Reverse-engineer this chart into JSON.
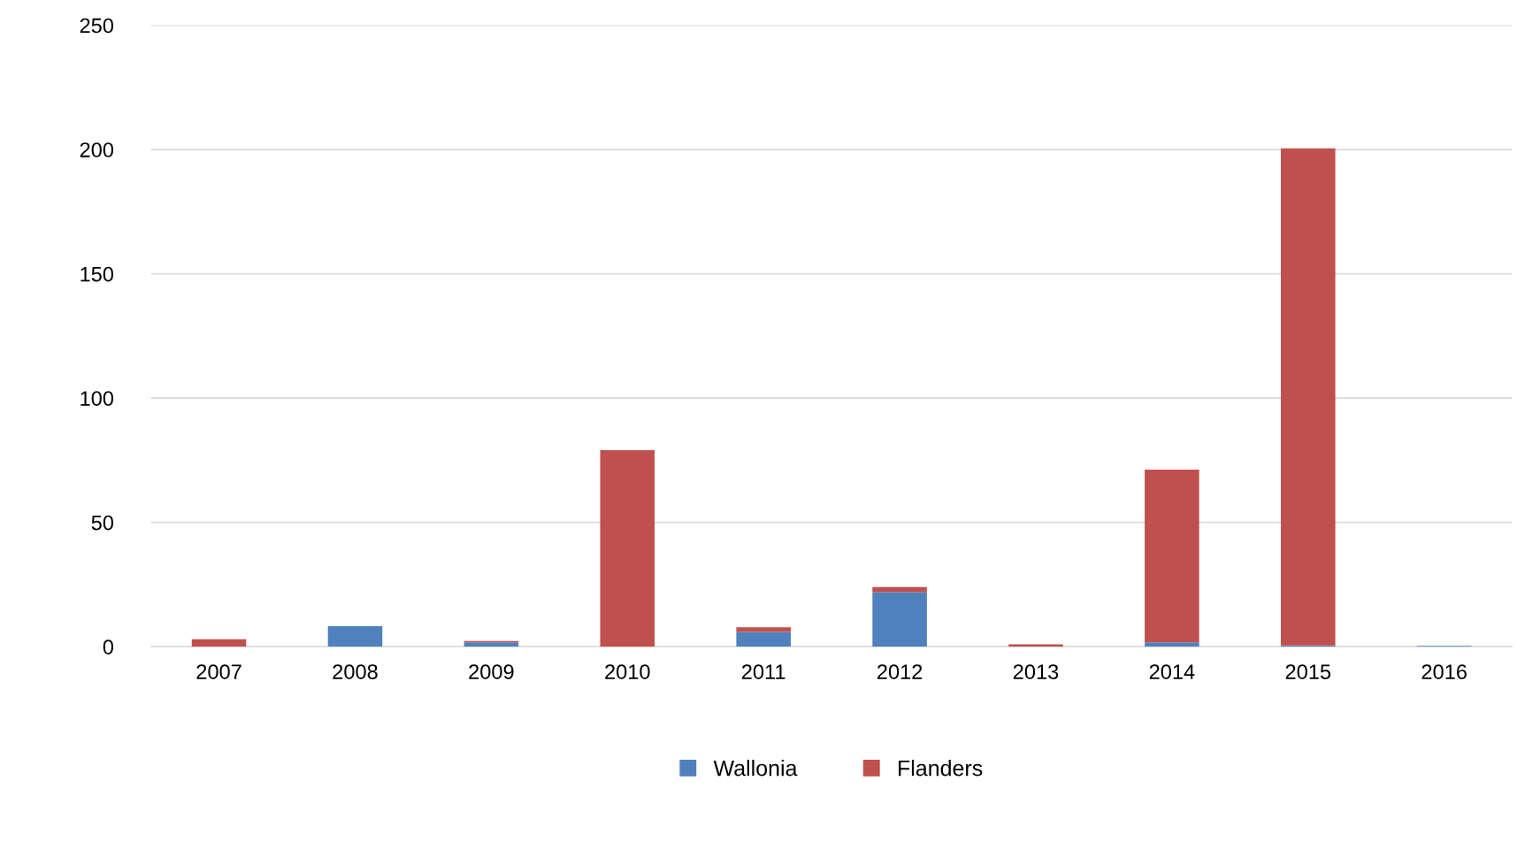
{
  "chart_data": {
    "type": "bar",
    "stacked": true,
    "categories": [
      "2007",
      "2008",
      "2009",
      "2010",
      "2011",
      "2012",
      "2013",
      "2014",
      "2015",
      "2016"
    ],
    "series": [
      {
        "name": "Wallonia",
        "color": "#4f81bd",
        "values": [
          0,
          8.2,
          1.7,
          0,
          5.9,
          21.9,
          0,
          1.7,
          0.5,
          0.3
        ]
      },
      {
        "name": "Flanders",
        "color": "#c0504d",
        "values": [
          3,
          0,
          0.6,
          79,
          1.9,
          2.1,
          0.9,
          69.5,
          200,
          0
        ]
      }
    ],
    "ylim": [
      0,
      250
    ],
    "yticks": [
      0,
      50,
      100,
      150,
      200,
      250
    ],
    "grid": "y",
    "legend": "bottom"
  }
}
